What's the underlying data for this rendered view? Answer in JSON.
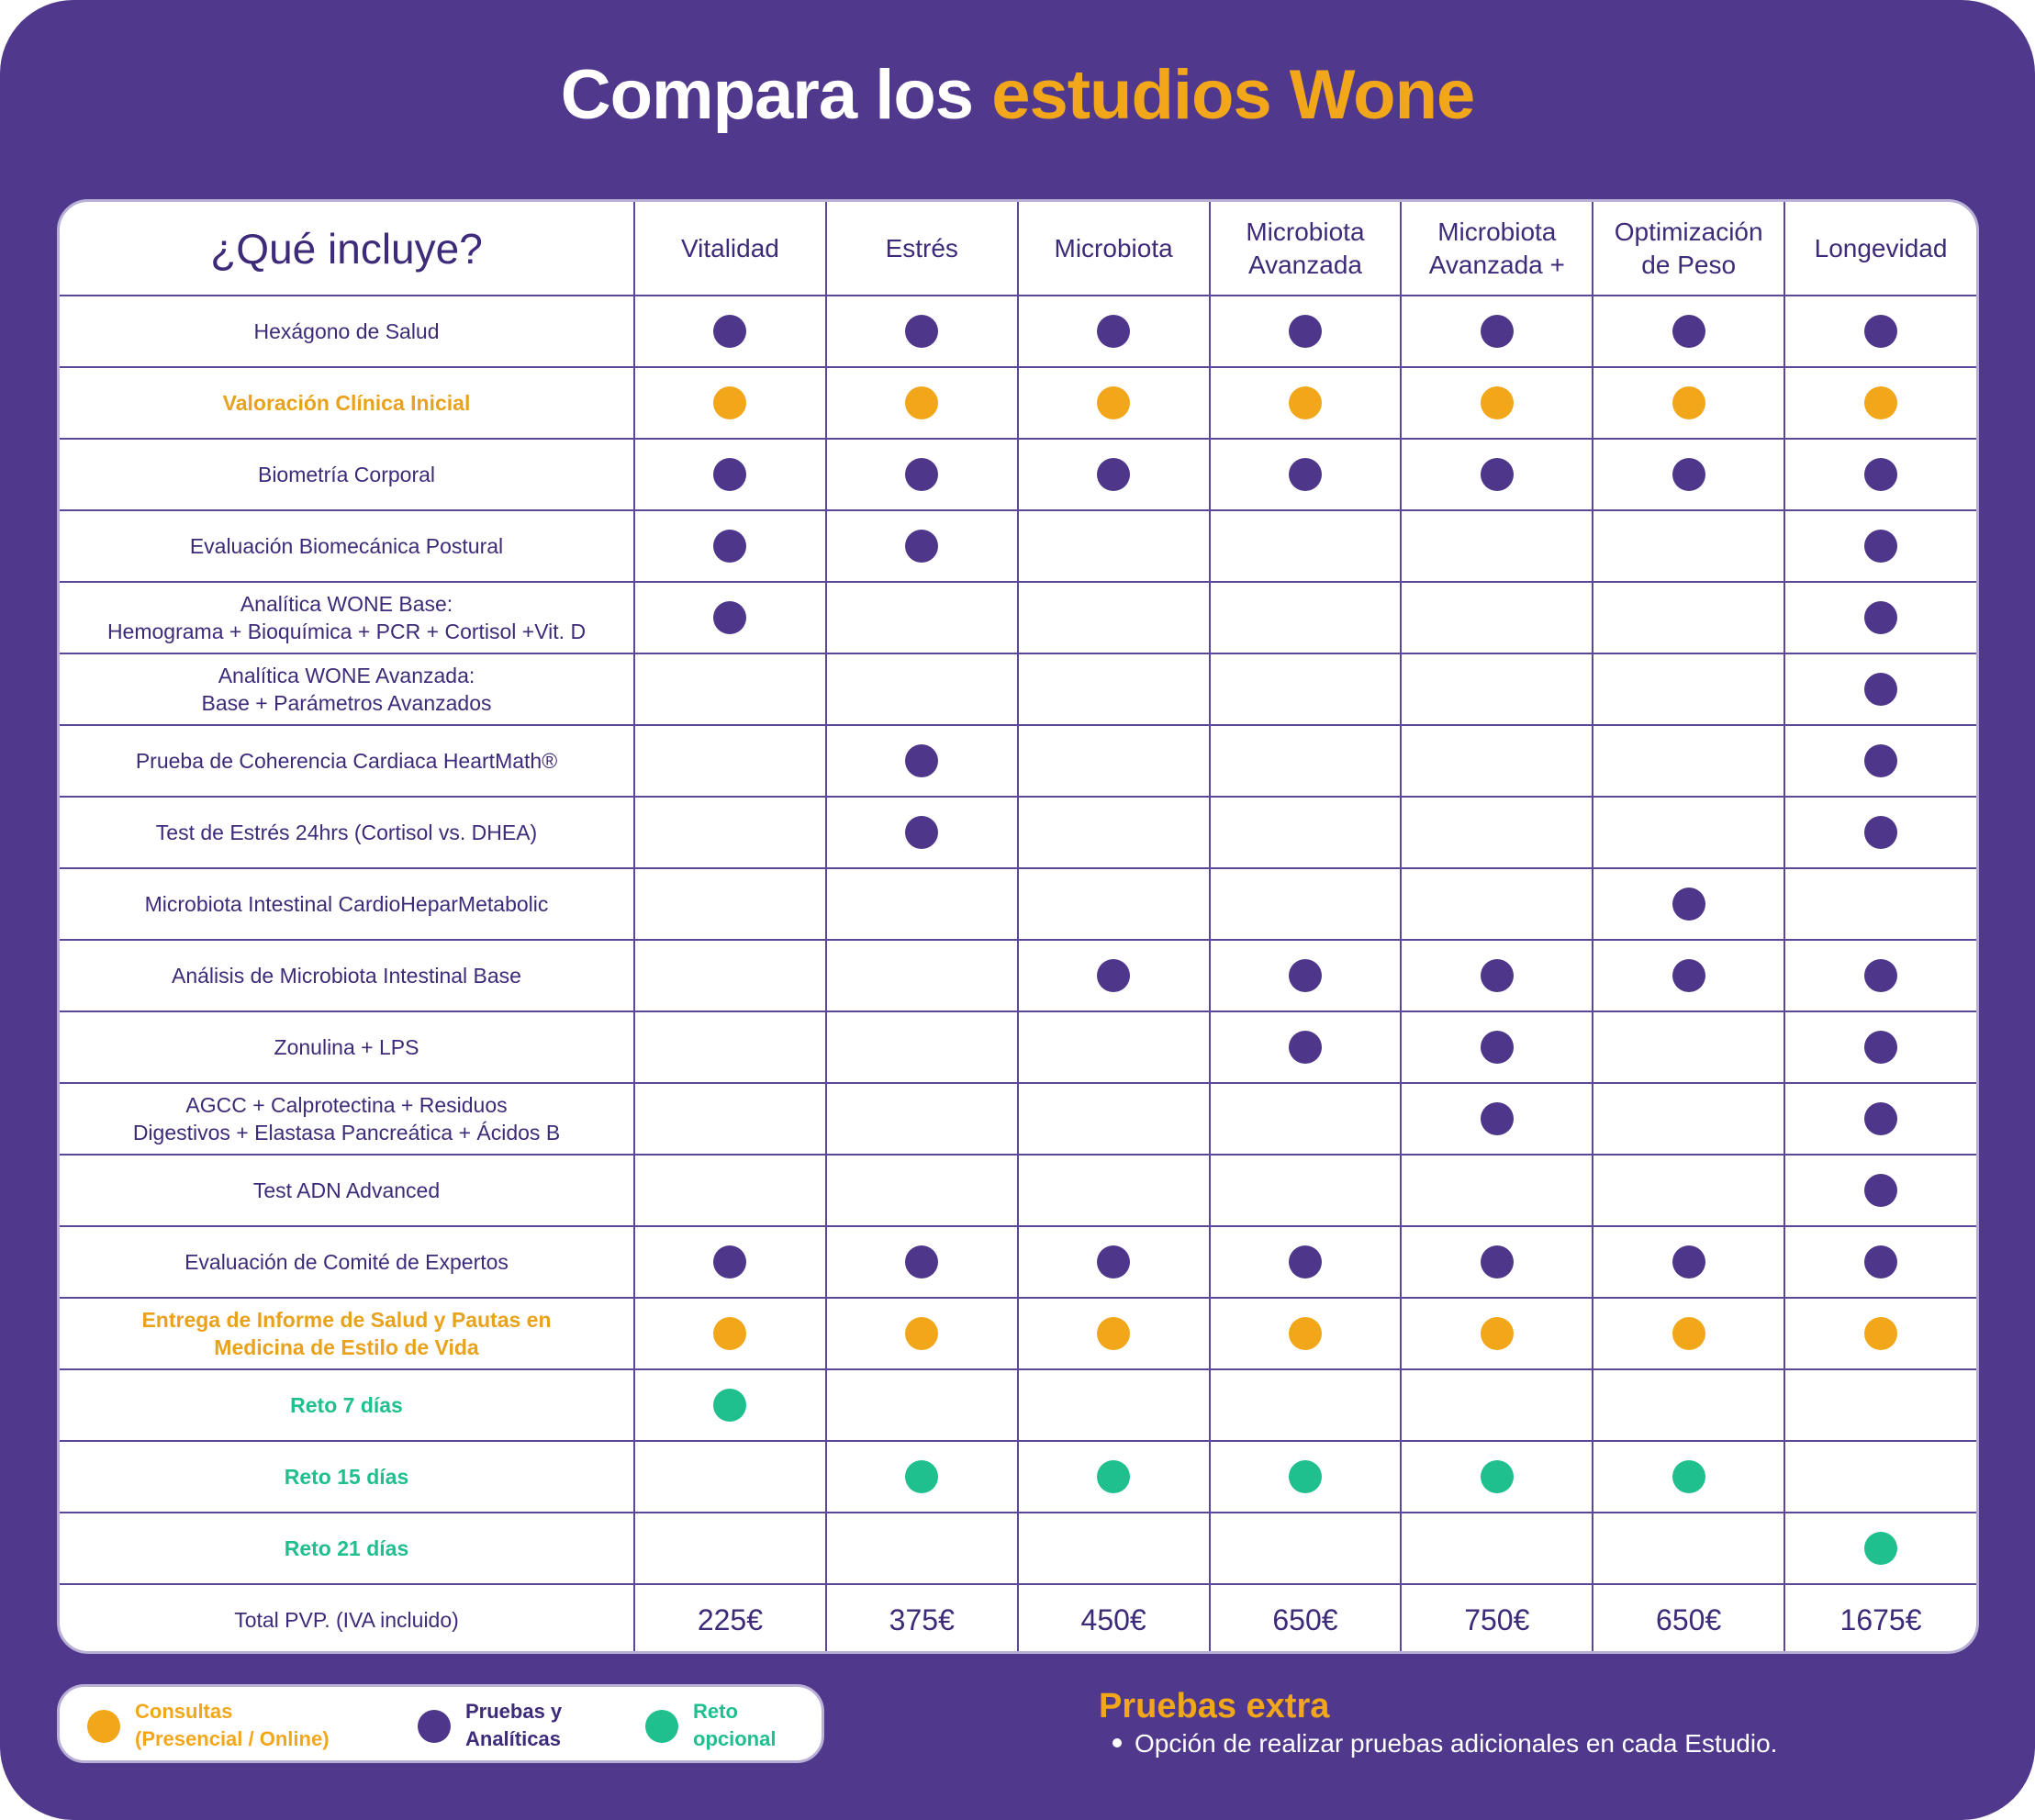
{
  "title": {
    "part1": "Compara los ",
    "part2": "estudios Wone"
  },
  "table": {
    "header": {
      "label": "¿Qué incluye?",
      "columns": [
        {
          "line1": "Vitalidad",
          "line2": ""
        },
        {
          "line1": "Estrés",
          "line2": ""
        },
        {
          "line1": "Microbiota",
          "line2": ""
        },
        {
          "line1": "Microbiota",
          "line2": "Avanzada"
        },
        {
          "line1": "Microbiota",
          "line2": "Avanzada +"
        },
        {
          "line1": "Optimización",
          "line2": "de Peso"
        },
        {
          "line1": "Longevidad",
          "line2": ""
        }
      ]
    },
    "rows": [
      {
        "line1": "Hexágono de Salud",
        "line2": "",
        "style": "purple",
        "marks": [
          "purple",
          "purple",
          "purple",
          "purple",
          "purple",
          "purple",
          "purple"
        ]
      },
      {
        "line1": "Valoración Clínica Inicial",
        "line2": "",
        "style": "orange",
        "marks": [
          "orange",
          "orange",
          "orange",
          "orange",
          "orange",
          "orange",
          "orange"
        ]
      },
      {
        "line1": "Biometría Corporal",
        "line2": "",
        "style": "purple",
        "marks": [
          "purple",
          "purple",
          "purple",
          "purple",
          "purple",
          "purple",
          "purple"
        ]
      },
      {
        "line1": "Evaluación Biomecánica Postural",
        "line2": "",
        "style": "purple",
        "marks": [
          "purple",
          "purple",
          "",
          "",
          "",
          "",
          "purple"
        ]
      },
      {
        "line1": "Analítica WONE Base:",
        "line2": "Hemograma + Bioquímica + PCR + Cortisol +Vit. D",
        "style": "purple",
        "marks": [
          "purple",
          "",
          "",
          "",
          "",
          "",
          "purple"
        ]
      },
      {
        "line1": "Analítica WONE Avanzada:",
        "line2": "Base + Parámetros Avanzados",
        "style": "purple",
        "marks": [
          "",
          "",
          "",
          "",
          "",
          "",
          "purple"
        ]
      },
      {
        "line1": "Prueba de Coherencia Cardiaca HeartMath®",
        "line2": "",
        "style": "purple",
        "marks": [
          "",
          "purple",
          "",
          "",
          "",
          "",
          "purple"
        ]
      },
      {
        "line1": "Test de Estrés 24hrs  (Cortisol vs. DHEA)",
        "line2": "",
        "style": "purple",
        "marks": [
          "",
          "purple",
          "",
          "",
          "",
          "",
          "purple"
        ]
      },
      {
        "line1": "Microbiota Intestinal CardioHeparMetabolic",
        "line2": "",
        "style": "purple",
        "marks": [
          "",
          "",
          "",
          "",
          "",
          "purple",
          ""
        ]
      },
      {
        "line1": "Análisis de Microbiota Intestinal Base",
        "line2": "",
        "style": "purple",
        "marks": [
          "",
          "",
          "purple",
          "purple",
          "purple",
          "purple",
          "purple"
        ]
      },
      {
        "line1": "Zonulina + LPS",
        "line2": "",
        "style": "purple",
        "marks": [
          "",
          "",
          "",
          "purple",
          "purple",
          "",
          "purple"
        ]
      },
      {
        "line1": "AGCC + Calprotectina + Residuos",
        "line2": "Digestivos + Elastasa Pancreática + Ácidos B",
        "style": "purple",
        "marks": [
          "",
          "",
          "",
          "",
          "purple",
          "",
          "purple"
        ]
      },
      {
        "line1": "Test ADN Advanced",
        "line2": "",
        "style": "purple",
        "marks": [
          "",
          "",
          "",
          "",
          "",
          "",
          "purple"
        ]
      },
      {
        "line1": "Evaluación de Comité de Expertos",
        "line2": "",
        "style": "purple",
        "marks": [
          "purple",
          "purple",
          "purple",
          "purple",
          "purple",
          "purple",
          "purple"
        ]
      },
      {
        "line1": "Entrega de Informe de Salud y Pautas en",
        "line2": "Medicina de Estilo de Vida",
        "style": "orange",
        "marks": [
          "orange",
          "orange",
          "orange",
          "orange",
          "orange",
          "orange",
          "orange"
        ]
      },
      {
        "line1": "Reto 7 días",
        "line2": "",
        "style": "green",
        "marks": [
          "green",
          "",
          "",
          "",
          "",
          "",
          ""
        ]
      },
      {
        "line1": "Reto 15 días",
        "line2": "",
        "style": "green",
        "marks": [
          "",
          "green",
          "green",
          "green",
          "green",
          "green",
          ""
        ]
      },
      {
        "line1": "Reto 21 días",
        "line2": "",
        "style": "green",
        "marks": [
          "",
          "",
          "",
          "",
          "",
          "",
          "green"
        ]
      }
    ],
    "total": {
      "label": "Total PVP. (IVA incluido)",
      "prices": [
        "225€",
        "375€",
        "450€",
        "650€",
        "750€",
        "650€",
        "1675€"
      ]
    }
  },
  "legend": {
    "consultas": {
      "line1": "Consultas",
      "line2": "(Presencial / Online)",
      "color": "orange"
    },
    "pruebas": {
      "line1": "Pruebas y",
      "line2": "Analíticas",
      "color": "purple"
    },
    "reto": {
      "line1": "Reto",
      "line2": "opcional",
      "color": "green"
    }
  },
  "extra": {
    "title": "Pruebas extra",
    "item": "Opción de realizar pruebas adicionales en cada Estudio."
  },
  "colors": {
    "background": "#50398c",
    "orange": "#f2a71b",
    "purple": "#4e378b",
    "green": "#1fbf8e"
  }
}
